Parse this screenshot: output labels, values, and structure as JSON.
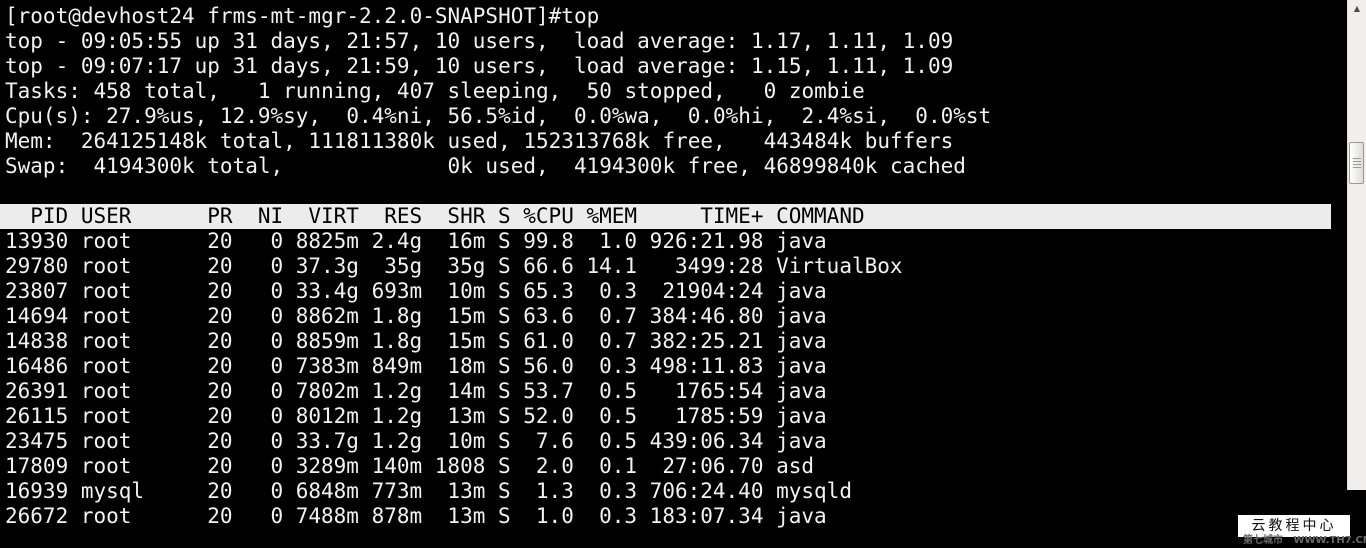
{
  "terminal": {
    "colors": {
      "background": "#000000",
      "foreground": "#f2f2f2",
      "header_bg": "#ececec",
      "header_fg": "#000000"
    },
    "prompt_line": "[root@devhost24 frms-mt-mgr-2.2.0-SNAPSHOT]#top",
    "summary_lines": [
      "top - 09:05:55 up 31 days, 21:57, 10 users,  load average: 1.17, 1.11, 1.09",
      "top - 09:07:17 up 31 days, 21:59, 10 users,  load average: 1.15, 1.11, 1.09",
      "Tasks: 458 total,   1 running, 407 sleeping,  50 stopped,   0 zombie",
      "Cpu(s): 27.9%us, 12.9%sy,  0.4%ni, 56.5%id,  0.0%wa,  0.0%hi,  2.4%si,  0.0%st",
      "Mem:  264125148k total, 111811380k used, 152313768k free,   443484k buffers",
      "Swap:  4194300k total,             0k used,  4194300k free, 46899840k cached"
    ],
    "table": {
      "headers": [
        "PID",
        "USER",
        "PR",
        "NI",
        "VIRT",
        "RES",
        "SHR",
        "S",
        "%CPU",
        "%MEM",
        "TIME+",
        "COMMAND"
      ],
      "rows": [
        [
          "13930",
          "root",
          "20",
          "0",
          "8825m",
          "2.4g",
          "16m",
          "S",
          "99.8",
          "1.0",
          "926:21.98",
          "java"
        ],
        [
          "29780",
          "root",
          "20",
          "0",
          "37.3g",
          "35g",
          "35g",
          "S",
          "66.6",
          "14.1",
          "3499:28",
          "VirtualBox"
        ],
        [
          "23807",
          "root",
          "20",
          "0",
          "33.4g",
          "693m",
          "10m",
          "S",
          "65.3",
          "0.3",
          "21904:24",
          "java"
        ],
        [
          "14694",
          "root",
          "20",
          "0",
          "8862m",
          "1.8g",
          "15m",
          "S",
          "63.6",
          "0.7",
          "384:46.80",
          "java"
        ],
        [
          "14838",
          "root",
          "20",
          "0",
          "8859m",
          "1.8g",
          "15m",
          "S",
          "61.0",
          "0.7",
          "382:25.21",
          "java"
        ],
        [
          "16486",
          "root",
          "20",
          "0",
          "7383m",
          "849m",
          "18m",
          "S",
          "56.0",
          "0.3",
          "498:11.83",
          "java"
        ],
        [
          "26391",
          "root",
          "20",
          "0",
          "7802m",
          "1.2g",
          "14m",
          "S",
          "53.7",
          "0.5",
          "1765:54",
          "java"
        ],
        [
          "26115",
          "root",
          "20",
          "0",
          "8012m",
          "1.2g",
          "13m",
          "S",
          "52.0",
          "0.5",
          "1785:59",
          "java"
        ],
        [
          "23475",
          "root",
          "20",
          "0",
          "33.7g",
          "1.2g",
          "10m",
          "S",
          "7.6",
          "0.5",
          "439:06.34",
          "java"
        ],
        [
          "17809",
          "root",
          "20",
          "0",
          "3289m",
          "140m",
          "1808",
          "S",
          "2.0",
          "0.1",
          "27:06.70",
          "asd"
        ],
        [
          "16939",
          "mysql",
          "20",
          "0",
          "6848m",
          "773m",
          "13m",
          "S",
          "1.3",
          "0.3",
          "706:24.40",
          "mysqld"
        ],
        [
          "26672",
          "root",
          "20",
          "0",
          "7488m",
          "878m",
          "13m",
          "S",
          "1.0",
          "0.3",
          "183:07.34",
          "java"
        ]
      ]
    }
  },
  "scrollbar": {
    "up_arrow": "▲"
  },
  "watermark": {
    "title": "云教程中心",
    "subtitle": "第七城市   WWW.TH7.CN"
  }
}
